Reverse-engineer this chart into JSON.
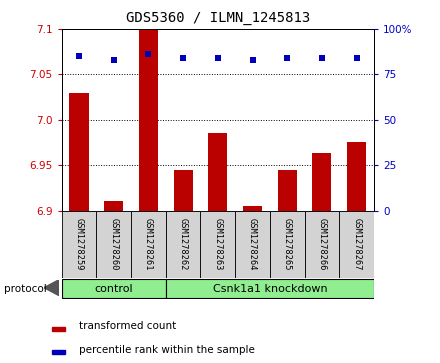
{
  "title": "GDS5360 / ILMN_1245813",
  "samples": [
    "GSM1278259",
    "GSM1278260",
    "GSM1278261",
    "GSM1278262",
    "GSM1278263",
    "GSM1278264",
    "GSM1278265",
    "GSM1278266",
    "GSM1278267"
  ],
  "bar_values": [
    7.03,
    6.91,
    7.1,
    6.945,
    6.985,
    6.905,
    6.945,
    6.963,
    6.975
  ],
  "percentile_values": [
    85,
    83,
    86,
    84,
    84,
    83,
    84,
    84,
    84
  ],
  "ymin": 6.9,
  "ylim_left": [
    6.9,
    7.1
  ],
  "ylim_right": [
    0,
    100
  ],
  "yticks_left": [
    6.9,
    6.95,
    7.0,
    7.05,
    7.1
  ],
  "yticks_right": [
    0,
    25,
    50,
    75,
    100
  ],
  "bar_color": "#bb0000",
  "dot_color": "#0000bb",
  "bar_width": 0.55,
  "legend_items": [
    {
      "label": "transformed count",
      "color": "#bb0000"
    },
    {
      "label": "percentile rank within the sample",
      "color": "#0000bb"
    }
  ],
  "control_samples": 3,
  "knockdown_samples": 6,
  "control_label": "control",
  "knockdown_label": "Csnk1a1 knockdown",
  "group_color": "#90ee90",
  "sample_box_color": "#d3d3d3",
  "protocol_label": "protocol",
  "axis_color_left": "#cc0000",
  "axis_color_right": "#0000cc"
}
